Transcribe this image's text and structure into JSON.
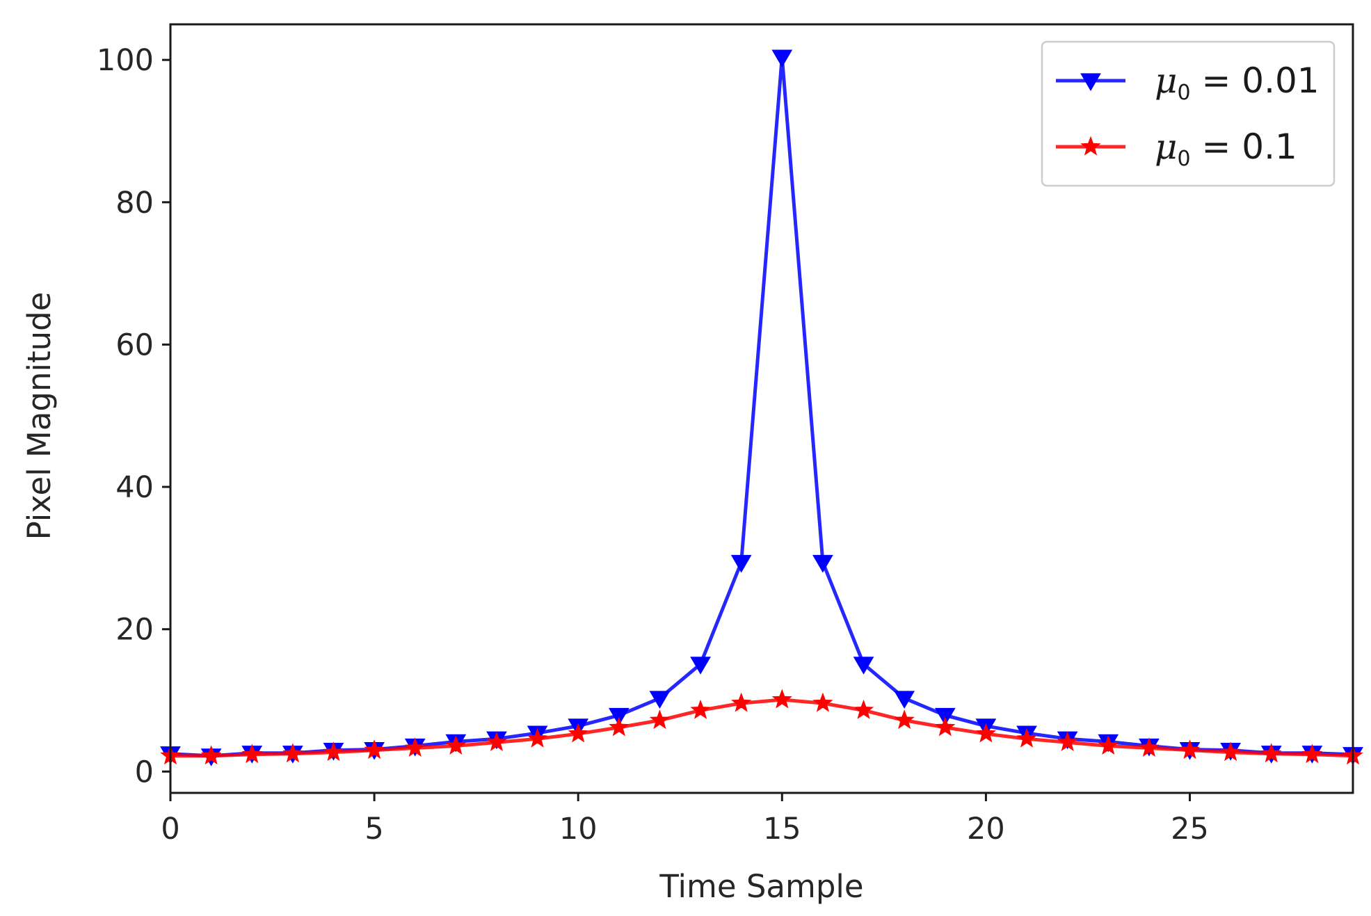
{
  "chart_data": {
    "type": "line",
    "title": "",
    "xlabel": "Time Sample",
    "ylabel": "Pixel Magnitude",
    "xlim": [
      0,
      29
    ],
    "ylim": [
      -3,
      105
    ],
    "x_ticks": [
      0,
      5,
      10,
      15,
      20,
      25
    ],
    "y_ticks": [
      0,
      20,
      40,
      60,
      80,
      100
    ],
    "x_tick_labels": [
      "0",
      "5",
      "10",
      "15",
      "20",
      "25"
    ],
    "y_tick_labels": [
      "0",
      "20",
      "40",
      "60",
      "80",
      "100"
    ],
    "legend_position": "top-right",
    "x": [
      0,
      1,
      2,
      3,
      4,
      5,
      6,
      7,
      8,
      9,
      10,
      11,
      12,
      13,
      14,
      15,
      16,
      17,
      18,
      19,
      20,
      21,
      22,
      23,
      24,
      25,
      26,
      27,
      28,
      29
    ],
    "series": [
      {
        "name": "μ0 = 0.01",
        "legend_symbol": "μ",
        "legend_subscript": "0",
        "legend_rest": " = 0.01",
        "color": "#0000ff",
        "marker": "triangle-down",
        "values": [
          2.5,
          2.2,
          2.6,
          2.6,
          3.0,
          3.1,
          3.6,
          4.2,
          4.6,
          5.4,
          6.4,
          7.9,
          10.3,
          15.1,
          29.4,
          100.4,
          29.4,
          15.1,
          10.3,
          7.9,
          6.4,
          5.4,
          4.6,
          4.2,
          3.6,
          3.1,
          3.0,
          2.6,
          2.6,
          2.4
        ]
      },
      {
        "name": "μ0 = 0.1",
        "legend_symbol": "μ",
        "legend_subscript": "0",
        "legend_rest": " = 0.1",
        "color": "#ff0000",
        "marker": "star",
        "values": [
          2.2,
          2.2,
          2.4,
          2.5,
          2.7,
          3.0,
          3.3,
          3.6,
          4.1,
          4.6,
          5.3,
          6.2,
          7.2,
          8.6,
          9.6,
          10.1,
          9.6,
          8.6,
          7.2,
          6.2,
          5.3,
          4.6,
          4.1,
          3.6,
          3.3,
          3.0,
          2.7,
          2.5,
          2.4,
          2.2
        ]
      }
    ]
  }
}
